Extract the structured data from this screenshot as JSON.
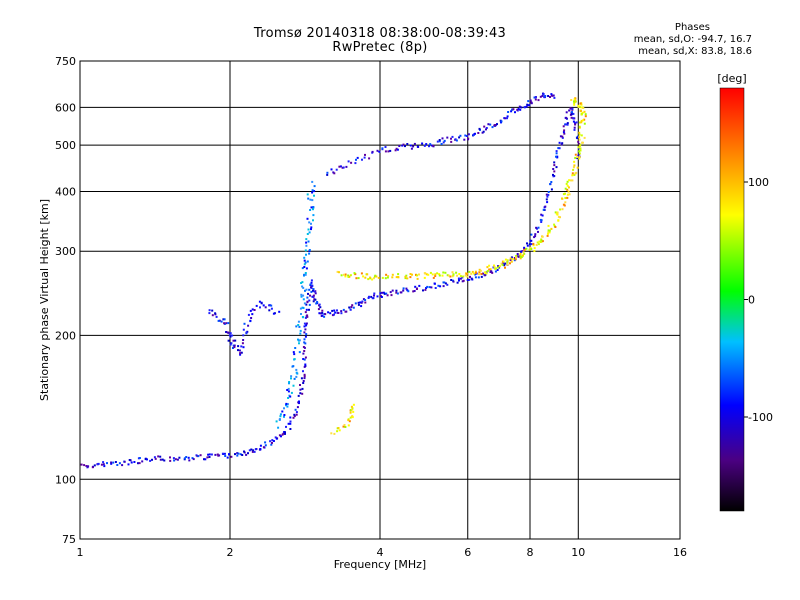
{
  "chart_data": {
    "type": "scatter",
    "title": "Tromsø 20140318 08:38:00-08:39:43",
    "subtitle": "RwPretec (8p)",
    "xlabel": "Frequency [MHz]",
    "ylabel": "Stationary phase Virtual Height [km]",
    "x_scale": "log",
    "y_scale": "log",
    "xlim": [
      1,
      16
    ],
    "ylim": [
      75,
      750
    ],
    "x_ticks": [
      1,
      2,
      4,
      6,
      8,
      10,
      16
    ],
    "y_ticks": [
      75,
      100,
      200,
      300,
      400,
      500,
      600,
      750
    ],
    "grid": true,
    "phases_header": "Phases",
    "phases_line1": "mean, sd,O: -94.7, 16.7",
    "phases_line2": "mean, sd,X:  83.8, 18.6",
    "colorbar": {
      "label": "[deg]",
      "ticks": [
        100,
        0,
        -100
      ],
      "range": [
        -180,
        180
      ]
    },
    "o_trace": [
      [
        1.0,
        107
      ],
      [
        1.1,
        108
      ],
      [
        1.25,
        109
      ],
      [
        1.4,
        111
      ],
      [
        1.6,
        111
      ],
      [
        1.8,
        112
      ],
      [
        2.0,
        113
      ],
      [
        2.2,
        115
      ],
      [
        2.4,
        120
      ],
      [
        2.6,
        128
      ],
      [
        2.75,
        145
      ],
      [
        2.8,
        170
      ],
      [
        2.82,
        200
      ],
      [
        2.85,
        230
      ],
      [
        2.9,
        260
      ],
      [
        2.95,
        240
      ],
      [
        3.05,
        222
      ],
      [
        3.3,
        225
      ],
      [
        3.6,
        233
      ],
      [
        3.9,
        243
      ],
      [
        4.3,
        248
      ],
      [
        4.8,
        252
      ],
      [
        5.4,
        258
      ],
      [
        6.0,
        265
      ],
      [
        6.6,
        272
      ],
      [
        7.2,
        285
      ],
      [
        7.8,
        305
      ],
      [
        8.3,
        340
      ],
      [
        8.7,
        400
      ],
      [
        9.0,
        470
      ],
      [
        9.3,
        540
      ],
      [
        9.6,
        600
      ],
      [
        9.8,
        560
      ],
      [
        10.0,
        460
      ]
    ],
    "o_upper": [
      [
        3.1,
        440
      ],
      [
        3.5,
        460
      ],
      [
        4.0,
        490
      ],
      [
        4.5,
        500
      ],
      [
        5.0,
        505
      ],
      [
        5.5,
        515
      ],
      [
        6.0,
        525
      ],
      [
        6.5,
        545
      ],
      [
        7.0,
        570
      ],
      [
        7.5,
        600
      ],
      [
        8.0,
        620
      ],
      [
        8.5,
        640
      ],
      [
        9.0,
        635
      ]
    ],
    "o_low_branch": [
      [
        1.8,
        225
      ],
      [
        1.95,
        215
      ],
      [
        2.0,
        195
      ],
      [
        2.1,
        185
      ],
      [
        2.15,
        215
      ],
      [
        2.3,
        235
      ],
      [
        2.5,
        225
      ]
    ],
    "o_spike": [
      [
        2.5,
        130
      ],
      [
        2.6,
        150
      ],
      [
        2.7,
        175
      ],
      [
        2.75,
        215
      ],
      [
        2.8,
        260
      ],
      [
        2.85,
        300
      ],
      [
        2.88,
        360
      ],
      [
        2.9,
        420
      ]
    ],
    "x_trace": [
      [
        3.3,
        272
      ],
      [
        3.6,
        268
      ],
      [
        4.0,
        265
      ],
      [
        4.5,
        267
      ],
      [
        5.0,
        268
      ],
      [
        5.5,
        269
      ],
      [
        6.0,
        270
      ],
      [
        6.5,
        275
      ],
      [
        7.0,
        282
      ],
      [
        7.5,
        292
      ],
      [
        8.0,
        305
      ],
      [
        8.5,
        320
      ],
      [
        9.0,
        350
      ],
      [
        9.3,
        385
      ],
      [
        9.6,
        420
      ],
      [
        9.9,
        470
      ],
      [
        10.1,
        520
      ],
      [
        10.2,
        580
      ],
      [
        10.0,
        610
      ],
      [
        9.7,
        630
      ]
    ],
    "x_lower": [
      [
        3.2,
        125
      ],
      [
        3.4,
        130
      ],
      [
        3.5,
        138
      ],
      [
        3.55,
        143
      ]
    ]
  }
}
